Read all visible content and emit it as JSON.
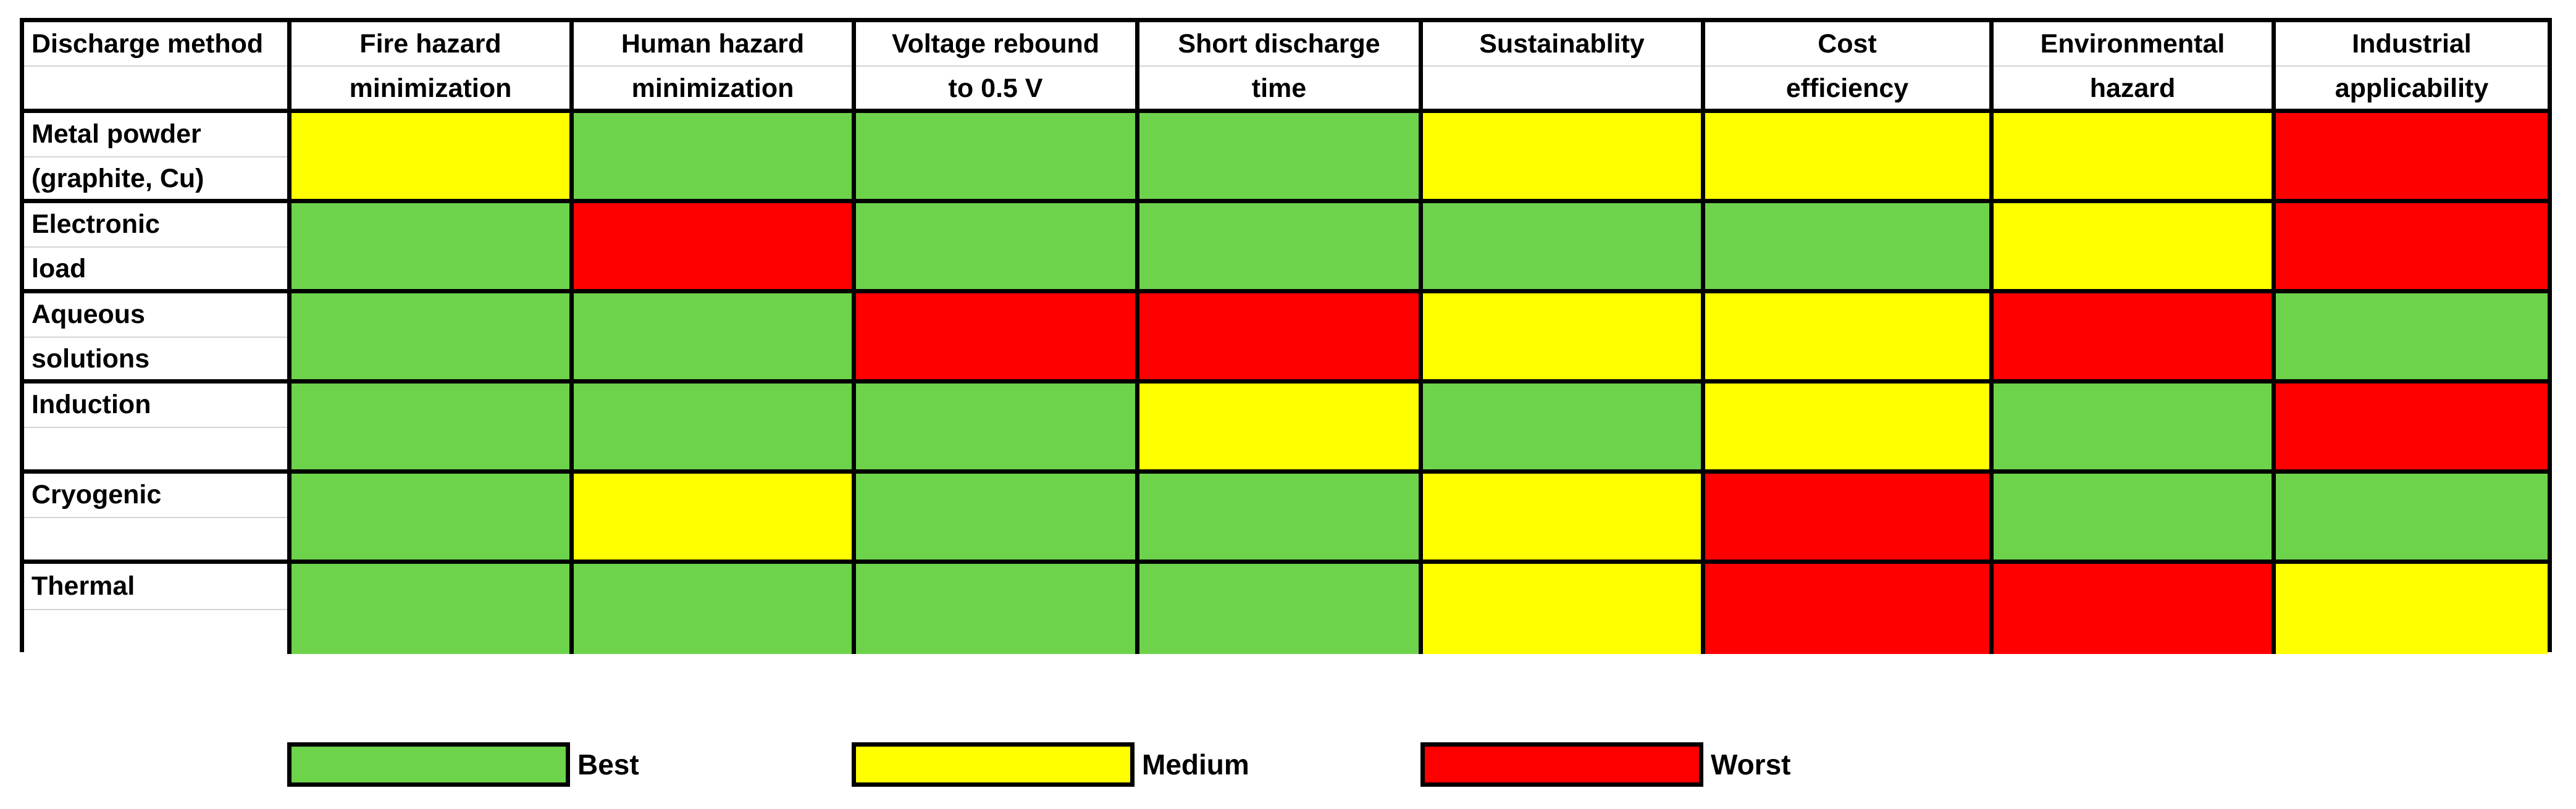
{
  "colors": {
    "best": "#6dd34b",
    "medium": "#ffff00",
    "worst": "#ff0000"
  },
  "table": {
    "headers": [
      {
        "line1": "Discharge method",
        "line2": ""
      },
      {
        "line1": "Fire hazard",
        "line2": "minimization"
      },
      {
        "line1": "Human hazard",
        "line2": "minimization"
      },
      {
        "line1": "Voltage rebound",
        "line2": "to 0.5 V"
      },
      {
        "line1": "Short discharge",
        "line2": "time"
      },
      {
        "line1": "Sustainablity",
        "line2": ""
      },
      {
        "line1": "Cost",
        "line2": "efficiency"
      },
      {
        "line1": "Environmental",
        "line2": "hazard"
      },
      {
        "line1": "Industrial",
        "line2": "applicability"
      }
    ],
    "rows": [
      {
        "method_line1": "Metal powder",
        "method_line2": "(graphite, Cu)",
        "ratings": [
          "medium",
          "best",
          "best",
          "best",
          "medium",
          "medium",
          "medium",
          "worst"
        ]
      },
      {
        "method_line1": "Electronic",
        "method_line2": "load",
        "ratings": [
          "best",
          "worst",
          "best",
          "best",
          "best",
          "best",
          "medium",
          "worst"
        ]
      },
      {
        "method_line1": "Aqueous",
        "method_line2": "solutions",
        "ratings": [
          "best",
          "best",
          "worst",
          "worst",
          "medium",
          "medium",
          "worst",
          "best"
        ]
      },
      {
        "method_line1": "Induction",
        "method_line2": "",
        "ratings": [
          "best",
          "best",
          "best",
          "medium",
          "best",
          "medium",
          "best",
          "worst"
        ]
      },
      {
        "method_line1": "Cryogenic",
        "method_line2": "",
        "ratings": [
          "best",
          "medium",
          "best",
          "best",
          "medium",
          "worst",
          "best",
          "best"
        ]
      },
      {
        "method_line1": "Thermal",
        "method_line2": "",
        "ratings": [
          "best",
          "best",
          "best",
          "best",
          "medium",
          "worst",
          "worst",
          "medium"
        ]
      }
    ]
  },
  "legend": [
    {
      "key": "best",
      "label": "Best"
    },
    {
      "key": "medium",
      "label": "Medium"
    },
    {
      "key": "worst",
      "label": "Worst"
    }
  ]
}
